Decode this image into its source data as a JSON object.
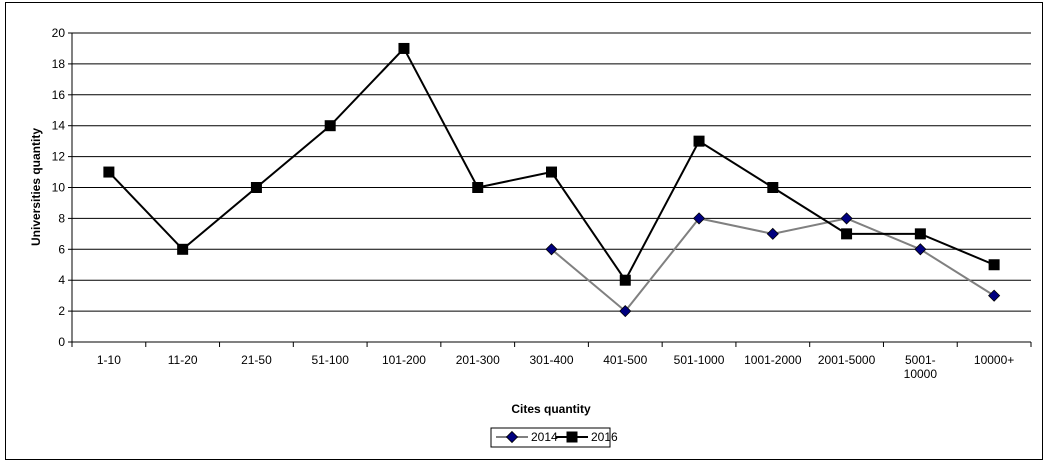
{
  "chart_data": {
    "type": "line",
    "title": "",
    "xlabel": "Cites quantity",
    "ylabel": "Universities quantity",
    "ylim": [
      0,
      20
    ],
    "ytick_step": 2,
    "grid": "horizontal",
    "legend_position": "bottom",
    "categories": [
      "1-10",
      "11-20",
      "21-50",
      "51-100",
      "101-200",
      "201-300",
      "301-400",
      "401-500",
      "501-1000",
      "1001-2000",
      "2001-5000",
      "5001-10000",
      "10000+"
    ],
    "category_labels": [
      [
        "1-10"
      ],
      [
        "11-20"
      ],
      [
        "21-50"
      ],
      [
        "51-100"
      ],
      [
        "101-200"
      ],
      [
        "201-300"
      ],
      [
        "301-400"
      ],
      [
        "401-500"
      ],
      [
        "501-1000"
      ],
      [
        "1001-2000"
      ],
      [
        "2001-5000"
      ],
      [
        "5001-",
        "10000"
      ],
      [
        "10000+"
      ]
    ],
    "series": [
      {
        "name": "2014",
        "color": "#808080",
        "marker": "diamond",
        "marker_color": "#00007f",
        "values": [
          null,
          null,
          null,
          null,
          null,
          null,
          6,
          2,
          8,
          7,
          8,
          6,
          3
        ]
      },
      {
        "name": "2016",
        "color": "#000000",
        "marker": "square",
        "marker_color": "#000000",
        "values": [
          11,
          6,
          10,
          14,
          19,
          10,
          11,
          4,
          13,
          10,
          7,
          7,
          5
        ]
      }
    ]
  }
}
